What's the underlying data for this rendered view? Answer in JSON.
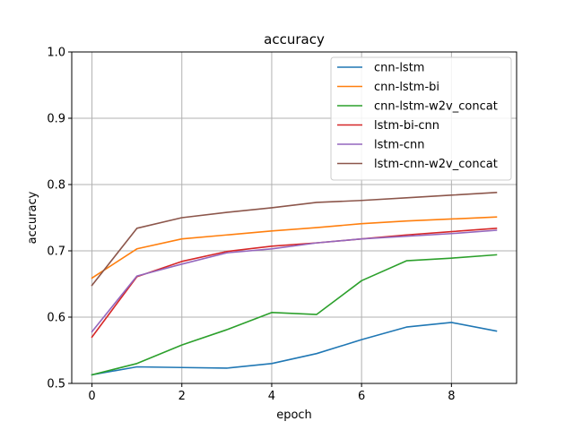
{
  "chart_data": {
    "type": "line",
    "title": "accuracy",
    "xlabel": "epoch",
    "ylabel": "accuracy",
    "xlim": [
      -0.45,
      9.45
    ],
    "ylim": [
      0.5,
      1.0
    ],
    "xticks": [
      0,
      2,
      4,
      6,
      8
    ],
    "yticks": [
      0.5,
      0.6,
      0.7,
      0.8,
      0.9,
      1.0
    ],
    "xtick_labels": [
      "0",
      "2",
      "4",
      "6",
      "8"
    ],
    "ytick_labels": [
      "0.5",
      "0.6",
      "0.7",
      "0.8",
      "0.9",
      "1.0"
    ],
    "grid": true,
    "legend_position": "upper right",
    "x": [
      0,
      1,
      2,
      3,
      4,
      5,
      6,
      7,
      8,
      9
    ],
    "series": [
      {
        "name": "cnn-lstm",
        "color": "#1f77b4",
        "values": [
          0.513,
          0.525,
          0.524,
          0.523,
          0.53,
          0.545,
          0.566,
          0.585,
          0.592,
          0.579
        ]
      },
      {
        "name": "cnn-lstm-bi",
        "color": "#ff7f0e",
        "values": [
          0.659,
          0.703,
          0.718,
          0.724,
          0.73,
          0.735,
          0.741,
          0.745,
          0.748,
          0.751
        ]
      },
      {
        "name": "cnn-lstm-w2v_concat",
        "color": "#2ca02c",
        "values": [
          0.513,
          0.53,
          0.558,
          0.581,
          0.607,
          0.604,
          0.655,
          0.685,
          0.689,
          0.694
        ]
      },
      {
        "name": "lstm-bi-cnn",
        "color": "#d62728",
        "values": [
          0.57,
          0.661,
          0.684,
          0.699,
          0.707,
          0.712,
          0.718,
          0.724,
          0.729,
          0.734
        ]
      },
      {
        "name": "lstm-cnn",
        "color": "#9467bd",
        "values": [
          0.578,
          0.662,
          0.68,
          0.697,
          0.703,
          0.712,
          0.718,
          0.722,
          0.726,
          0.731
        ]
      },
      {
        "name": "lstm-cnn-w2v_concat",
        "color": "#8c564b",
        "values": [
          0.648,
          0.734,
          0.75,
          0.758,
          0.765,
          0.773,
          0.776,
          0.78,
          0.784,
          0.788
        ]
      }
    ]
  }
}
